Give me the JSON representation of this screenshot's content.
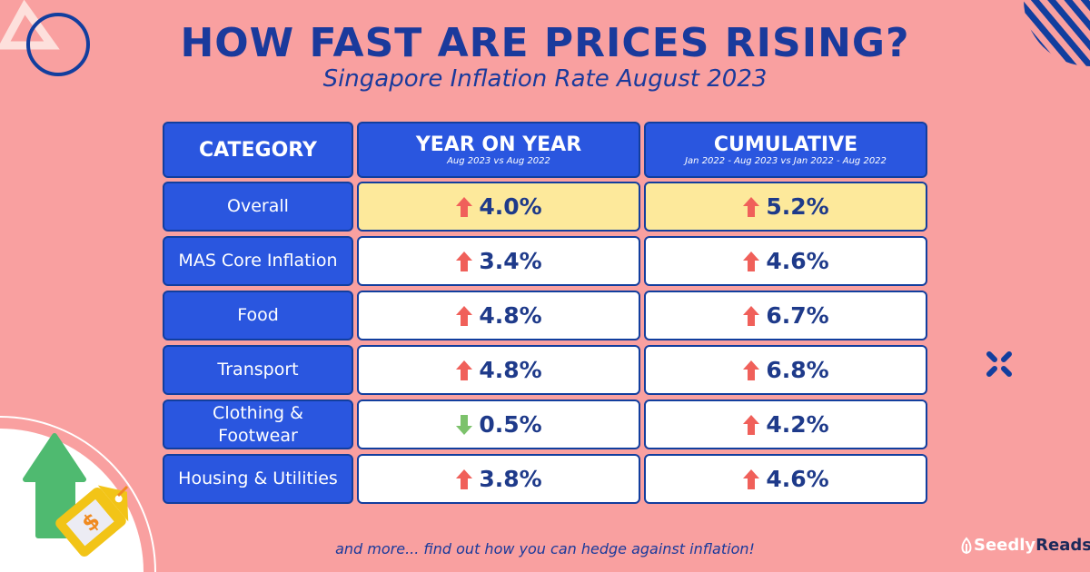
{
  "title": "HOW FAST ARE PRICES RISING?",
  "subtitle": "Singapore Inflation Rate August 2023",
  "colors": {
    "background": "#f9a0a0",
    "header_blue": "#2a56df",
    "highlight": "#fde99b",
    "up": "#f0605a",
    "down": "#7cc26b"
  },
  "table": {
    "headers": [
      {
        "label": "CATEGORY",
        "sub": ""
      },
      {
        "label": "YEAR ON YEAR",
        "sub": "Aug 2023 vs Aug 2022"
      },
      {
        "label": "CUMULATIVE",
        "sub": "Jan 2022 - Aug 2023 vs Jan 2022 - Aug 2022"
      }
    ],
    "rows": [
      {
        "category": "Overall",
        "yoy": "4.0%",
        "yoy_dir": "up",
        "cum": "5.2%",
        "cum_dir": "up",
        "highlight": true
      },
      {
        "category": "MAS Core Inflation",
        "yoy": "3.4%",
        "yoy_dir": "up",
        "cum": "4.6%",
        "cum_dir": "up"
      },
      {
        "category": "Food",
        "yoy": "4.8%",
        "yoy_dir": "up",
        "cum": "6.7%",
        "cum_dir": "up"
      },
      {
        "category": "Transport",
        "yoy": "4.8%",
        "yoy_dir": "up",
        "cum": "6.8%",
        "cum_dir": "up"
      },
      {
        "category": "Clothing & Footwear",
        "yoy": "0.5%",
        "yoy_dir": "down",
        "cum": "4.2%",
        "cum_dir": "up"
      },
      {
        "category": "Housing & Utilities",
        "yoy": "3.8%",
        "yoy_dir": "up",
        "cum": "4.6%",
        "cum_dir": "up"
      }
    ]
  },
  "footer": "and more... find out how you can hedge against inflation!",
  "logo": {
    "part1": "Seedly",
    "part2": "Reads"
  }
}
